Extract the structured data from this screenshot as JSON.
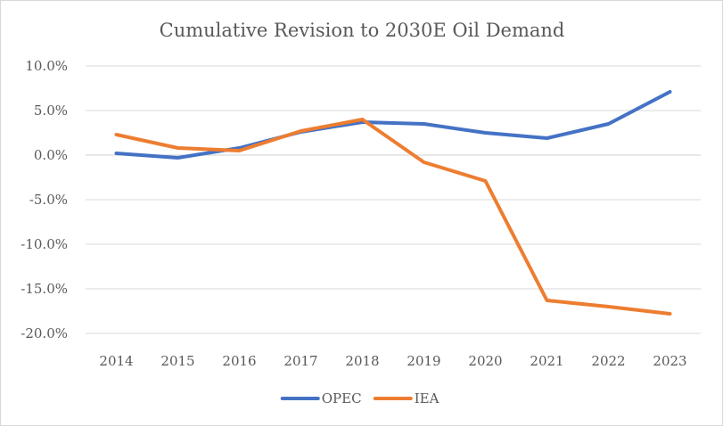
{
  "chart_data": {
    "type": "line",
    "title": "Cumulative Revision to 2030E Oil Demand",
    "xlabel": "",
    "ylabel": "",
    "categories": [
      "2014",
      "2015",
      "2016",
      "2017",
      "2018",
      "2019",
      "2020",
      "2021",
      "2022",
      "2023"
    ],
    "ylim": [
      -20,
      10
    ],
    "yticks": [
      10,
      5,
      0,
      -5,
      -10,
      -15,
      -20
    ],
    "ytick_labels": [
      "10.0%",
      "5.0%",
      "0.0%",
      "-5.0%",
      "-10.0%",
      "-15.0%",
      "-20.0%"
    ],
    "grid": "horizontal",
    "legend_position": "bottom",
    "series": [
      {
        "name": "OPEC",
        "color": "#4472C4",
        "values": [
          0.2,
          -0.3,
          0.8,
          2.6,
          3.7,
          3.5,
          2.5,
          1.9,
          3.5,
          7.1
        ]
      },
      {
        "name": "IEA",
        "color": "#ED7D31",
        "values": [
          2.3,
          0.8,
          0.5,
          2.7,
          4.0,
          -0.8,
          -2.9,
          -16.3,
          -17.0,
          -17.8
        ]
      }
    ]
  }
}
